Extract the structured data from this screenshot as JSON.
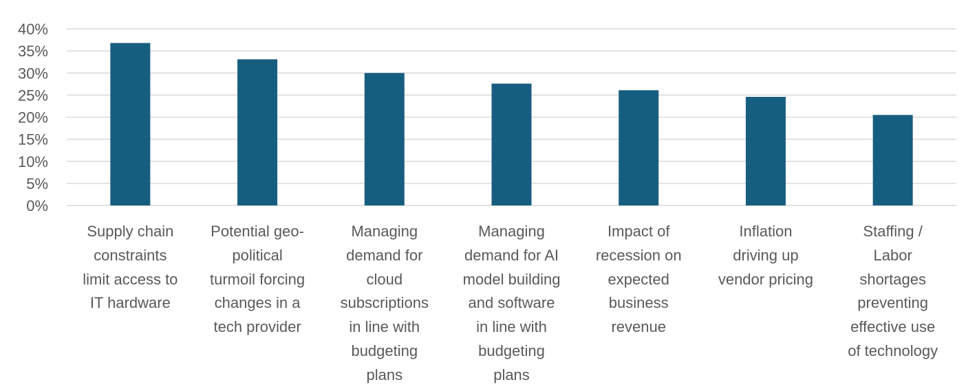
{
  "chart_data": {
    "type": "bar",
    "title": "",
    "xlabel": "",
    "ylabel": "",
    "ylim": [
      0,
      40
    ],
    "yticks": [
      0,
      5,
      10,
      15,
      20,
      25,
      30,
      35,
      40
    ],
    "ytick_labels": [
      "0%",
      "5%",
      "10%",
      "15%",
      "20%",
      "25%",
      "30%",
      "35%",
      "40%"
    ],
    "grid": true,
    "legend": "none",
    "bar_color": "#165e80",
    "grid_color": "#d9d9d9",
    "categories": [
      "Supply chain constraints limit access to IT hardware",
      "Potential geo-political turmoil forcing changes in a tech provider",
      "Managing demand for cloud subscriptions in line with budgeting plans",
      "Managing demand for AI model building and software in line with budgeting plans",
      "Impact of recession on expected business revenue",
      "Inflation driving up vendor pricing",
      "Staffing / Labor shortages preventing effective use of technology"
    ],
    "category_lines": [
      [
        "Supply chain",
        "constraints",
        "limit access to",
        "IT hardware"
      ],
      [
        "Potential geo-",
        "political",
        "turmoil forcing",
        "changes in a",
        "tech provider"
      ],
      [
        "Managing",
        "demand for",
        "cloud",
        "subscriptions",
        "in line with",
        "budgeting",
        "plans"
      ],
      [
        "Managing",
        "demand for AI",
        "model building",
        "and software",
        "in line with",
        "budgeting",
        "plans"
      ],
      [
        "Impact of",
        "recession on",
        "expected",
        "business",
        "revenue"
      ],
      [
        "Inflation",
        "driving up",
        "vendor pricing"
      ],
      [
        "Staffing /",
        "Labor",
        "shortages",
        "preventing",
        "effective use",
        "of technology"
      ]
    ],
    "values": [
      36.8,
      33.1,
      30.0,
      27.6,
      26.1,
      24.6,
      20.5
    ],
    "unit": "%"
  }
}
